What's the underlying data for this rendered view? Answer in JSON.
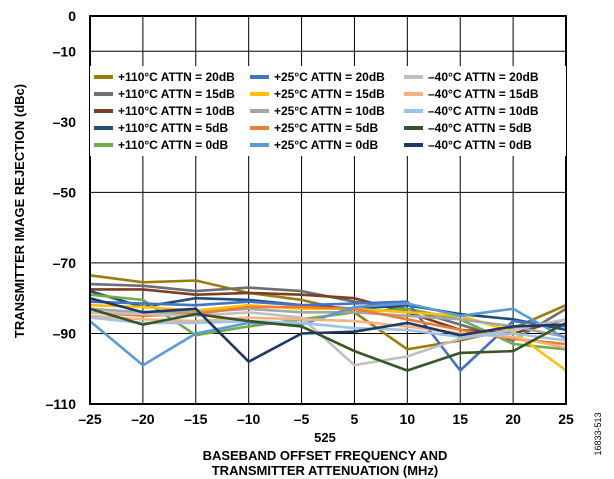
{
  "chart_data": {
    "type": "line",
    "title": "",
    "xlabel": "BASEBAND OFFSET FREQUENCY AND TRANSMITTER ATTENUATION (MHz)",
    "xlabel_lines": [
      "BASEBAND OFFSET FREQUENCY AND",
      "TRANSMITTER ATTENUATION (MHz)"
    ],
    "x_unit_text": "525",
    "ylabel": "TRANSMITTER IMAGE REJECTION (dBc)",
    "x_ticks": [
      "–25",
      "–20",
      "–15",
      "–10",
      "–5",
      "5",
      "10",
      "15",
      "20",
      "25"
    ],
    "y_ticks": [
      {
        "value": 0,
        "label": "0"
      },
      {
        "value": -10,
        "label": "–10"
      },
      {
        "value": -30,
        "label": "–30"
      },
      {
        "value": -50,
        "label": "–50"
      },
      {
        "value": -70,
        "label": "–70"
      },
      {
        "value": -90,
        "label": "–90"
      },
      {
        "value": -110,
        "label": "–110"
      }
    ],
    "ylim": [
      -110,
      0
    ],
    "grid": true,
    "legend_position": "top",
    "series": [
      {
        "name": "+110°C ATTN = 20dB",
        "color": "#9a7d0a",
        "values": [
          -73.5,
          -75.5,
          -75,
          -78.5,
          -80.5,
          -84,
          -94.5,
          -92,
          -88.5,
          -82
        ]
      },
      {
        "name": "+110°C ATTN = 15dB",
        "color": "#6e6e6e",
        "values": [
          -76,
          -76.5,
          -78,
          -77,
          -78,
          -81,
          -83,
          -87.5,
          -92,
          -83
        ]
      },
      {
        "name": "+110°C ATTN = 10dB",
        "color": "#7a4025",
        "values": [
          -77.5,
          -77.5,
          -79,
          -78.5,
          -79,
          -80,
          -84,
          -89,
          -90,
          -86
        ]
      },
      {
        "name": "+110°C ATTN = 5dB",
        "color": "#1f4e79",
        "values": [
          -78,
          -82.5,
          -80,
          -80.5,
          -82,
          -83,
          -82,
          -84.5,
          -86,
          -89
        ]
      },
      {
        "name": "+110°C ATTN = 0dB",
        "color": "#70ad47",
        "values": [
          -79,
          -80.5,
          -90.5,
          -88,
          -86,
          -84,
          -83,
          -86,
          -93,
          -94.5
        ]
      },
      {
        "name": "+25°C ATTN = 20dB",
        "color": "#4472c4",
        "values": [
          -81,
          -81.5,
          -82,
          -81,
          -82,
          -81.5,
          -81,
          -100.5,
          -86.5,
          -88
        ]
      },
      {
        "name": "+25°C ATTN = 15dB",
        "color": "#ffc000",
        "values": [
          -82,
          -82.5,
          -83.5,
          -82,
          -83,
          -83,
          -84,
          -85,
          -89.5,
          -100.5
        ]
      },
      {
        "name": "+25°C ATTN = 10dB",
        "color": "#a5a5a5",
        "values": [
          -83,
          -84,
          -84,
          -83,
          -84,
          -84,
          -85,
          -86,
          -88,
          -91
        ]
      },
      {
        "name": "+25°C ATTN = 5dB",
        "color": "#ed7d31",
        "values": [
          -84,
          -85,
          -84.5,
          -82.5,
          -82.5,
          -83,
          -86,
          -89,
          -91.5,
          -93
        ]
      },
      {
        "name": "+25°C ATTN = 0dB",
        "color": "#5b9bd5",
        "values": [
          -86.5,
          -99,
          -90,
          -87,
          -87.5,
          -82.5,
          -81.5,
          -85,
          -83,
          -91.5
        ]
      },
      {
        "name": "–40°C ATTN = 20dB",
        "color": "#c0c0c0",
        "values": [
          -84,
          -84.5,
          -85,
          -84,
          -85.5,
          -99,
          -96.5,
          -91.5,
          -89,
          -86
        ]
      },
      {
        "name": "–40°C ATTN = 15dB",
        "color": "#f4b183",
        "values": [
          -85,
          -86,
          -86.5,
          -85.5,
          -86,
          -86.5,
          -88,
          -90,
          -91,
          -94
        ]
      },
      {
        "name": "–40°C ATTN = 10dB",
        "color": "#9dc3e6",
        "values": [
          -85.5,
          -87,
          -87,
          -86.5,
          -87,
          -88.5,
          -89,
          -91,
          -90,
          -92
        ]
      },
      {
        "name": "–40°C ATTN = 5dB",
        "color": "#375623",
        "values": [
          -83,
          -87.5,
          -84.5,
          -86.5,
          -88,
          -95,
          -100.5,
          -95.5,
          -95,
          -87
        ]
      },
      {
        "name": "–40°C ATTN = 0dB",
        "color": "#203864",
        "values": [
          -80,
          -84,
          -83,
          -98,
          -90,
          -89.5,
          -87,
          -90.5,
          -88,
          -87.5
        ]
      }
    ]
  },
  "figure_id": "16833-513"
}
